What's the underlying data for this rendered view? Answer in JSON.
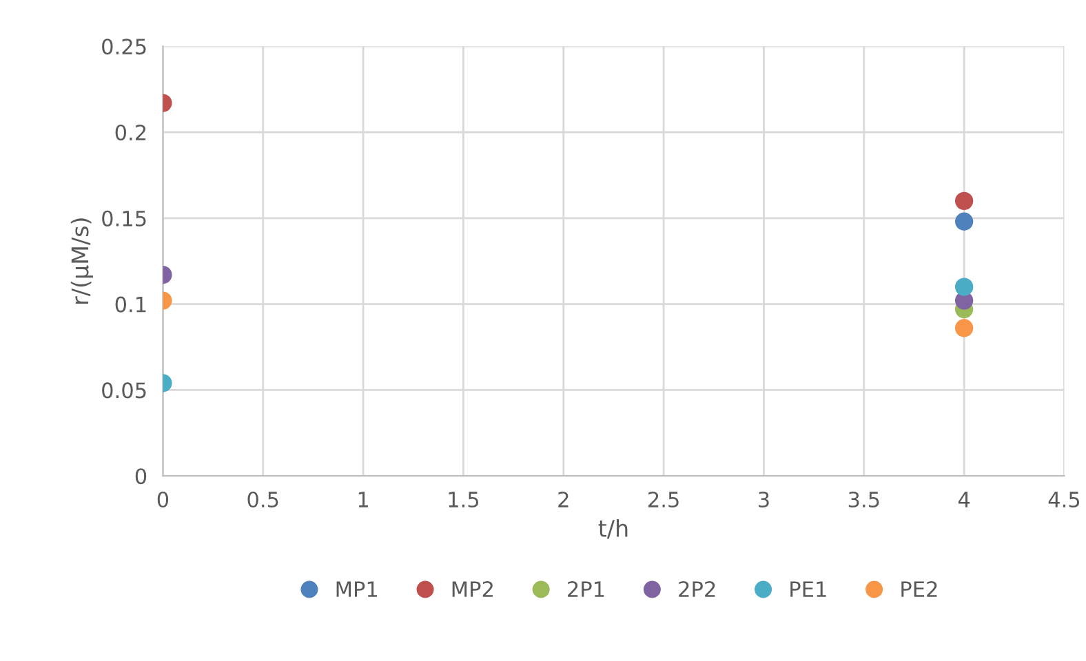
{
  "chart_data": {
    "type": "scatter",
    "xlabel": "t/h",
    "ylabel": "r/(μM/s)",
    "x": [
      0,
      4
    ],
    "series": [
      {
        "name": "MP1",
        "color": "#4f81bd",
        "values": [
          null,
          0.148
        ]
      },
      {
        "name": "MP2",
        "color": "#c0504d",
        "values": [
          0.217,
          0.16
        ]
      },
      {
        "name": "2P1",
        "color": "#9bbb59",
        "values": [
          null,
          0.097
        ]
      },
      {
        "name": "2P2",
        "color": "#8064a2",
        "values": [
          0.117,
          0.102
        ]
      },
      {
        "name": "PE1",
        "color": "#4bacc6",
        "values": [
          0.054,
          0.11
        ]
      },
      {
        "name": "PE2",
        "color": "#f79646",
        "values": [
          0.102,
          0.086
        ]
      }
    ],
    "xlim": [
      0,
      4.5
    ],
    "xticks": [
      0,
      0.5,
      1,
      1.5,
      2,
      2.5,
      3,
      3.5,
      4,
      4.5
    ],
    "ylim": [
      0,
      0.25
    ],
    "yticks": [
      0,
      0.05,
      0.1,
      0.15,
      0.2,
      0.25
    ],
    "grid": true,
    "legend": "bottom",
    "marker": "circle"
  }
}
